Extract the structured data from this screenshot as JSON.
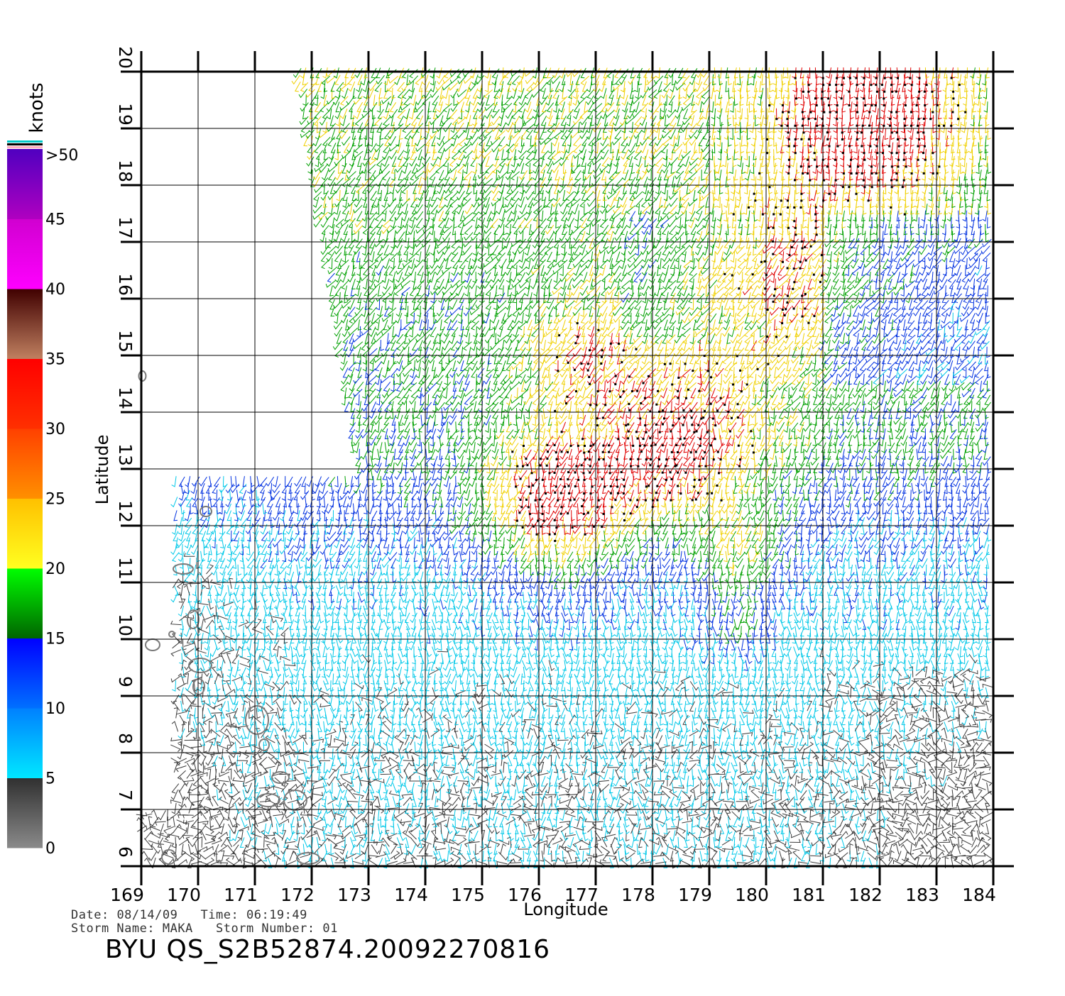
{
  "map": {
    "xlabel": "Longitude",
    "ylabel": "Latitude",
    "lon_range": [
      169,
      184
    ],
    "lat_range": [
      6,
      20
    ],
    "lon_ticks": [
      "169",
      "170",
      "171",
      "172",
      "173",
      "174",
      "175",
      "176",
      "177",
      "178",
      "179",
      "180",
      "181",
      "182",
      "183",
      "184"
    ],
    "lat_ticks": [
      "6",
      "7",
      "8",
      "9",
      "10",
      "11",
      "12",
      "13",
      "14",
      "15",
      "16",
      "17",
      "18",
      "19",
      "20"
    ],
    "grid": true
  },
  "colorbar": {
    "title": "knots",
    "labels": [
      ">50",
      "45",
      "40",
      "35",
      "30",
      "25",
      "20",
      "15",
      "10",
      "5",
      "0"
    ],
    "bands": [
      {
        "from": 0,
        "to": 5,
        "colors": [
          "#8a8a8a",
          "#303030"
        ]
      },
      {
        "from": 5,
        "to": 10,
        "colors": [
          "#00e8ff",
          "#0080ff"
        ]
      },
      {
        "from": 10,
        "to": 15,
        "colors": [
          "#0070ff",
          "#0000ff"
        ]
      },
      {
        "from": 15,
        "to": 20,
        "colors": [
          "#006400",
          "#00ff00"
        ]
      },
      {
        "from": 20,
        "to": 25,
        "colors": [
          "#ffff20",
          "#ffc000"
        ]
      },
      {
        "from": 25,
        "to": 30,
        "colors": [
          "#ff9000",
          "#ff4000"
        ]
      },
      {
        "from": 30,
        "to": 35,
        "colors": [
          "#ff3000",
          "#ff0000"
        ]
      },
      {
        "from": 35,
        "to": 40,
        "colors": [
          "#c08060",
          "#400000"
        ]
      },
      {
        "from": 40,
        "to": 45,
        "colors": [
          "#ff00ff",
          "#d000d0"
        ]
      },
      {
        "from": 45,
        "to": 50,
        "colors": [
          "#b000c0",
          "#5000c0"
        ]
      }
    ],
    "top_stripes": [
      "#ffb0c0",
      "#000000",
      "#00c8c8"
    ]
  },
  "wind_colors": {
    "calm": "#3a3a3a",
    "light": "#00c8e8",
    "moderate": "#0030e0",
    "fresh": "#00a000",
    "strong": "#f0d000",
    "gale": "#e00000"
  },
  "metadata": {
    "date_label": "Date:",
    "date": "08/14/09",
    "time_label": "Time:",
    "time": "06:19:49",
    "storm_name_label": "Storm Name:",
    "storm_name": "MAKA",
    "storm_number_label": "Storm Number:",
    "storm_number": "01"
  },
  "product_id": "BYU QS_S2B52874.20092270816"
}
